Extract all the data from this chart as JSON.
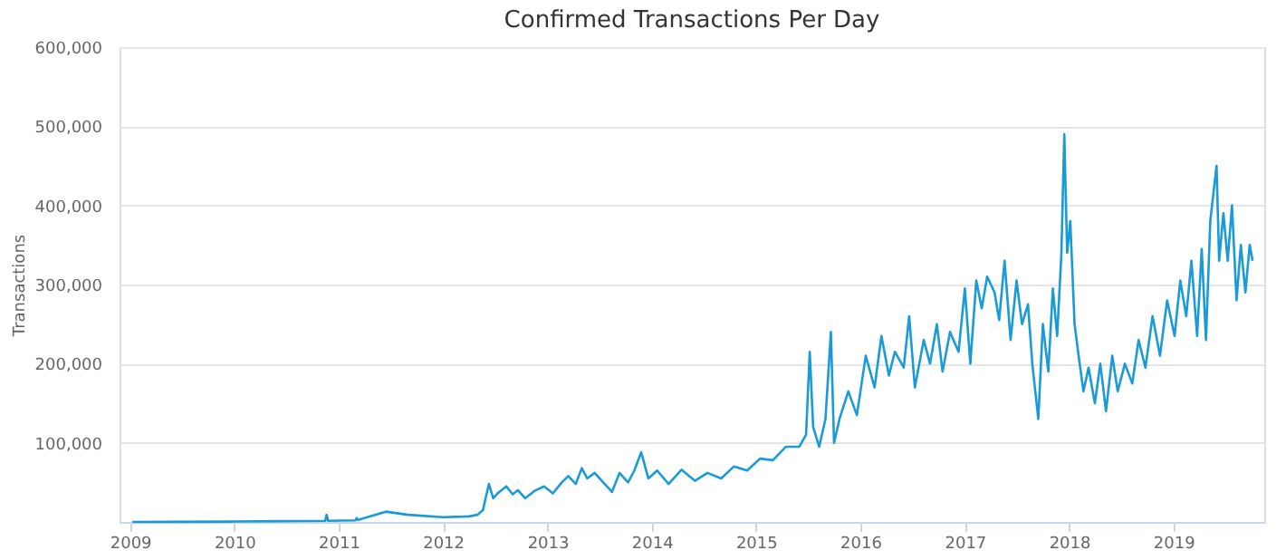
{
  "chart_data": {
    "type": "line",
    "title": "Confirmed Transactions Per Day",
    "ylabel": "Transactions",
    "x": [
      "2009-01-09",
      "2009-06-01",
      "2010-01-01",
      "2010-06-01",
      "2010-11-15",
      "2010-11-20",
      "2010-11-25",
      "2011-03-01",
      "2011-03-05",
      "2011-03-10",
      "2011-06-15",
      "2011-09-01",
      "2012-01-01",
      "2012-04-01",
      "2012-05-01",
      "2012-05-20",
      "2012-06-10",
      "2012-06-25",
      "2012-07-10",
      "2012-08-10",
      "2012-09-01",
      "2012-09-20",
      "2012-10-15",
      "2012-11-20",
      "2012-12-20",
      "2013-01-20",
      "2013-02-20",
      "2013-03-15",
      "2013-04-10",
      "2013-05-01",
      "2013-05-20",
      "2013-06-15",
      "2013-07-15",
      "2013-08-15",
      "2013-09-10",
      "2013-10-10",
      "2013-11-01",
      "2013-11-25",
      "2013-12-20",
      "2014-01-20",
      "2014-03-01",
      "2014-04-15",
      "2014-06-01",
      "2014-07-15",
      "2014-09-01",
      "2014-10-15",
      "2014-12-01",
      "2015-01-15",
      "2015-03-01",
      "2015-04-15",
      "2015-06-01",
      "2015-06-25",
      "2015-07-08",
      "2015-07-20",
      "2015-08-10",
      "2015-09-01",
      "2015-09-20",
      "2015-10-01",
      "2015-10-20",
      "2015-11-20",
      "2015-12-20",
      "2016-01-20",
      "2016-02-20",
      "2016-03-15",
      "2016-04-10",
      "2016-05-01",
      "2016-06-01",
      "2016-06-20",
      "2016-07-10",
      "2016-08-10",
      "2016-09-01",
      "2016-09-25",
      "2016-10-15",
      "2016-11-10",
      "2016-12-10",
      "2017-01-01",
      "2017-01-20",
      "2017-02-10",
      "2017-03-01",
      "2017-03-20",
      "2017-04-15",
      "2017-05-01",
      "2017-05-20",
      "2017-06-10",
      "2017-07-01",
      "2017-07-20",
      "2017-08-10",
      "2017-08-25",
      "2017-09-15",
      "2017-10-01",
      "2017-10-20",
      "2017-11-05",
      "2017-11-20",
      "2017-12-05",
      "2017-12-15",
      "2017-12-25",
      "2018-01-05",
      "2018-01-20",
      "2018-02-05",
      "2018-02-20",
      "2018-03-10",
      "2018-04-01",
      "2018-04-20",
      "2018-05-10",
      "2018-06-01",
      "2018-06-20",
      "2018-07-15",
      "2018-08-10",
      "2018-09-01",
      "2018-09-25",
      "2018-10-20",
      "2018-11-15",
      "2018-12-10",
      "2019-01-05",
      "2019-01-25",
      "2019-02-15",
      "2019-03-05",
      "2019-03-25",
      "2019-04-10",
      "2019-04-25",
      "2019-05-10",
      "2019-06-01",
      "2019-06-10",
      "2019-06-25",
      "2019-07-10",
      "2019-07-25",
      "2019-08-10",
      "2019-08-25",
      "2019-09-10",
      "2019-09-25",
      "2019-10-05"
    ],
    "series": [
      {
        "color": "#1a9bd7",
        "values": [
          0,
          100,
          500,
          1000,
          1500,
          9000,
          1500,
          2000,
          5000,
          2500,
          13000,
          9000,
          6000,
          7000,
          9000,
          15000,
          48000,
          30000,
          36000,
          45000,
          35000,
          40000,
          30000,
          40000,
          45000,
          36000,
          50000,
          58000,
          48000,
          68000,
          55000,
          62000,
          50000,
          38000,
          62000,
          50000,
          65000,
          88000,
          55000,
          65000,
          48000,
          66000,
          52000,
          62000,
          55000,
          70000,
          65000,
          80000,
          78000,
          95000,
          95000,
          110000,
          215000,
          120000,
          95000,
          130000,
          240000,
          100000,
          130000,
          165000,
          135000,
          210000,
          170000,
          235000,
          185000,
          215000,
          195000,
          260000,
          170000,
          230000,
          200000,
          250000,
          190000,
          240000,
          215000,
          295000,
          200000,
          305000,
          270000,
          310000,
          290000,
          255000,
          330000,
          230000,
          305000,
          250000,
          275000,
          200000,
          130000,
          250000,
          190000,
          295000,
          235000,
          340000,
          490000,
          340000,
          380000,
          250000,
          205000,
          165000,
          195000,
          150000,
          200000,
          140000,
          210000,
          165000,
          200000,
          175000,
          230000,
          195000,
          260000,
          210000,
          280000,
          235000,
          305000,
          260000,
          330000,
          235000,
          345000,
          230000,
          380000,
          450000,
          330000,
          390000,
          330000,
          400000,
          280000,
          350000,
          290000,
          350000,
          330000
        ]
      }
    ],
    "xlim": [
      "2008-11-25",
      "2019-11-15"
    ],
    "xticks": [
      {
        "value": "2009",
        "label": "2009"
      },
      {
        "value": "2010",
        "label": "2010"
      },
      {
        "value": "2011",
        "label": "2011"
      },
      {
        "value": "2012",
        "label": "2012"
      },
      {
        "value": "2013",
        "label": "2013"
      },
      {
        "value": "2014",
        "label": "2014"
      },
      {
        "value": "2015",
        "label": "2015"
      },
      {
        "value": "2016",
        "label": "2016"
      },
      {
        "value": "2017",
        "label": "2017"
      },
      {
        "value": "2018",
        "label": "2018"
      },
      {
        "value": "2019",
        "label": "2019"
      }
    ],
    "ylim": [
      0,
      600000
    ],
    "yticks": [
      {
        "value": 0,
        "label": null
      },
      {
        "value": 100000,
        "label": "100,000"
      },
      {
        "value": 200000,
        "label": "200,000"
      },
      {
        "value": 300000,
        "label": "300,000"
      },
      {
        "value": 400000,
        "label": "400,000"
      },
      {
        "value": 500000,
        "label": "500,000"
      },
      {
        "value": 600000,
        "label": "600,000"
      }
    ],
    "grid": "y",
    "marker": "none",
    "line_style": "solid"
  }
}
